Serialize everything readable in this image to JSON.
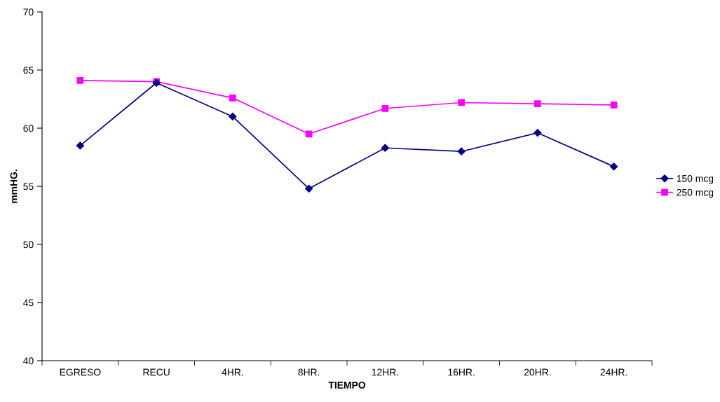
{
  "chart_data": {
    "type": "line",
    "xlabel": "TIEMPO",
    "ylabel": "mmHG.",
    "categories": [
      "EGRESO",
      "RECU",
      "4HR.",
      "8HR.",
      "12HR.",
      "16HR.",
      "20HR.",
      "24HR."
    ],
    "series": [
      {
        "name": "150 mcg",
        "color": "#000080",
        "marker": "diamond",
        "values": [
          58.5,
          63.9,
          61.0,
          54.8,
          58.3,
          58.0,
          59.6,
          56.7
        ]
      },
      {
        "name": "250 mcg",
        "color": "#ff00ff",
        "marker": "square",
        "values": [
          64.1,
          64.0,
          62.6,
          59.5,
          61.7,
          62.2,
          62.1,
          62.0
        ]
      }
    ],
    "ylim": [
      40,
      70
    ],
    "yticks": [
      40,
      45,
      50,
      55,
      60,
      65,
      70
    ],
    "grid": false,
    "legend": "right"
  }
}
